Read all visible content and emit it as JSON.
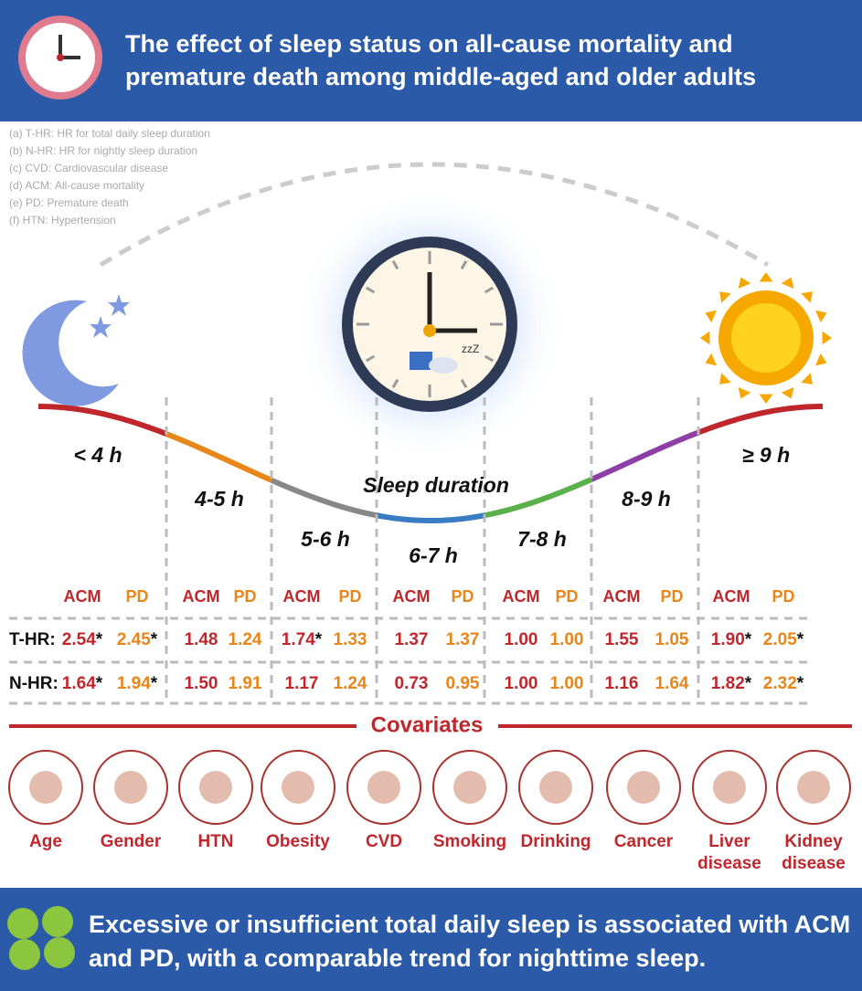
{
  "header": {
    "title": "The effect of sleep status on all-cause mortality and premature death among middle-aged and older adults"
  },
  "abbreviations": [
    "(a) T-HR: HR for total daily sleep duration",
    "(b) N-HR: HR for nightly sleep duration",
    "(c) CVD: Cardiovascular disease",
    "(d) ACM: All-cause mortality",
    "(e) PD: Premature death",
    "(f) HTN: Hypertension"
  ],
  "axis_label": "Sleep duration",
  "row_labels": {
    "t_hr": "T-HR:",
    "n_hr": "N-HR:"
  },
  "groups": [
    {
      "label": "< 4 h",
      "acm": "ACM",
      "pd": "PD",
      "t_hr": [
        "2.54*",
        "2.45*"
      ],
      "n_hr": [
        "1.64*",
        "1.94*"
      ]
    },
    {
      "label": "4-5 h",
      "acm": "ACM",
      "pd": "PD",
      "t_hr": [
        "1.48",
        "1.24"
      ],
      "n_hr": [
        "1.50",
        "1.91"
      ]
    },
    {
      "label": "5-6 h",
      "acm": "ACM",
      "pd": "PD",
      "t_hr": [
        "1.74*",
        "1.33"
      ],
      "n_hr": [
        "1.17",
        "1.24"
      ]
    },
    {
      "label": "6-7 h",
      "acm": "ACM",
      "pd": "PD",
      "t_hr": [
        "1.37",
        "1.37"
      ],
      "n_hr": [
        "0.73",
        "0.95"
      ]
    },
    {
      "label": "7-8 h",
      "acm": "ACM",
      "pd": "PD",
      "t_hr": [
        "1.00",
        "1.00"
      ],
      "n_hr": [
        "1.00",
        "1.00"
      ]
    },
    {
      "label": "8-9 h",
      "acm": "ACM",
      "pd": "PD",
      "t_hr": [
        "1.55",
        "1.05"
      ],
      "n_hr": [
        "1.16",
        "1.64"
      ]
    },
    {
      "label": "≥ 9 h",
      "acm": "ACM",
      "pd": "PD",
      "t_hr": [
        "1.90*",
        "2.05*"
      ],
      "n_hr": [
        "1.82*",
        "2.32*"
      ]
    }
  ],
  "covariates": {
    "title": "Covariates",
    "items": [
      "Age",
      "Gender",
      "HTN",
      "Obesity",
      "CVD",
      "Smoking",
      "Drinking",
      "Cancer",
      "Liver disease",
      "Kidney disease"
    ]
  },
  "footer": {
    "text": "Excessive or insufficient total daily sleep is associated with ACM and PD, with a comparable trend for nighttime sleep."
  }
}
